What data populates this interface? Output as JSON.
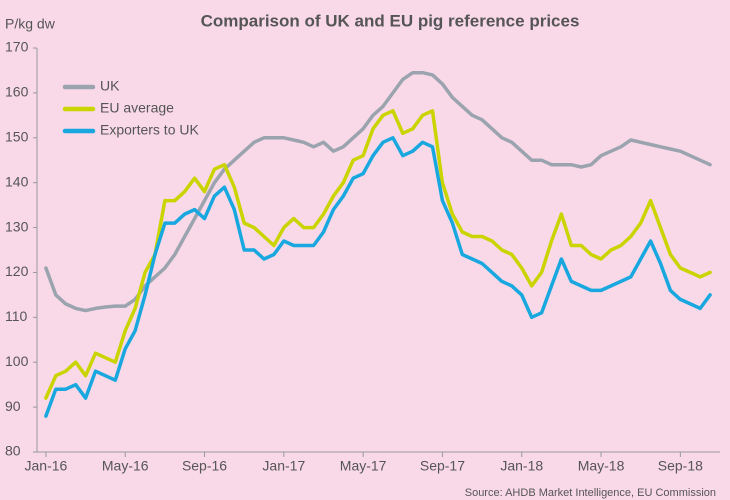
{
  "chart_data": {
    "type": "line",
    "title": "Comparison of UK and EU pig reference prices",
    "y_label": "P/kg dw",
    "source": "Source: AHDB Market Intelligence, EU Commission",
    "x": [
      0,
      0.5,
      1,
      1.5,
      2,
      2.5,
      3,
      3.5,
      4,
      4.5,
      5,
      5.5,
      6,
      6.5,
      7,
      7.5,
      8,
      8.5,
      9,
      9.5,
      10,
      10.5,
      11,
      11.5,
      12,
      12.5,
      13,
      13.5,
      14,
      14.5,
      15,
      15.5,
      16,
      16.5,
      17,
      17.5,
      18,
      18.5,
      19,
      19.5,
      20,
      20.5,
      21,
      21.5,
      22,
      22.5,
      23,
      23.5,
      24,
      24.5,
      25,
      25.5,
      26,
      26.5,
      27,
      27.5,
      28,
      28.5,
      29,
      29.5,
      30,
      30.5,
      31,
      31.5,
      32,
      32.5,
      33,
      33.5
    ],
    "xlim": [
      -0.45,
      34
    ],
    "xticks": [
      {
        "value": 0,
        "label": "Jan-16"
      },
      {
        "value": 4,
        "label": "May-16"
      },
      {
        "value": 8,
        "label": "Sep-16"
      },
      {
        "value": 12,
        "label": "Jan-17"
      },
      {
        "value": 16,
        "label": "May-17"
      },
      {
        "value": 20,
        "label": "Sep-17"
      },
      {
        "value": 24,
        "label": "Jan-18"
      },
      {
        "value": 28,
        "label": "May-18"
      },
      {
        "value": 32,
        "label": "Sep-18"
      }
    ],
    "ylim": [
      80,
      170
    ],
    "yticks": [
      80,
      90,
      100,
      110,
      120,
      130,
      140,
      150,
      160,
      170
    ],
    "grid": false,
    "legend": "upper left",
    "series": [
      {
        "name": "UK",
        "color": "#9ba4ae",
        "values": [
          121,
          115,
          113,
          112,
          111.5,
          112,
          112.3,
          112.5,
          112.5,
          114,
          117,
          119,
          121,
          124,
          128,
          132,
          136,
          140,
          143,
          145,
          147,
          149,
          150,
          150,
          150,
          149.5,
          149,
          148,
          149,
          147,
          148,
          150,
          152,
          155,
          157,
          160,
          163,
          164.5,
          164.5,
          164,
          162,
          159,
          157,
          155,
          154,
          152,
          150,
          149,
          147,
          145,
          145,
          144,
          144,
          144,
          143.5,
          144,
          146,
          147,
          148,
          149.5,
          149,
          148.5,
          148,
          147.5,
          147,
          146,
          145,
          144
        ]
      },
      {
        "name": "EU average",
        "color": "#c9d400",
        "values": [
          92,
          97,
          98,
          100,
          97,
          102,
          101,
          100,
          107,
          112,
          120,
          124,
          136,
          136,
          138,
          141,
          138,
          143,
          144,
          139,
          131,
          130,
          128,
          126,
          130,
          132,
          130,
          130,
          133,
          137,
          140,
          145,
          146,
          152,
          155,
          156,
          151,
          152,
          155,
          156,
          140,
          133,
          129,
          128,
          128,
          127,
          125,
          124,
          121,
          117,
          120,
          127,
          133,
          126,
          126,
          124,
          123,
          125,
          126,
          128,
          131,
          136,
          130,
          124,
          121,
          120,
          119,
          120
        ]
      },
      {
        "name": "Exporters to UK",
        "color": "#18a8df",
        "values": [
          88,
          94,
          94,
          95,
          92,
          98,
          97,
          96,
          103,
          107,
          115,
          124,
          131,
          131,
          133,
          134,
          132,
          137,
          139,
          134,
          125,
          125,
          123,
          124,
          127,
          126,
          126,
          126,
          129,
          134,
          137,
          141,
          142,
          146,
          149,
          150,
          146,
          147,
          149,
          148,
          136,
          131,
          124,
          123,
          122,
          120,
          118,
          117,
          115,
          110,
          111,
          117,
          123,
          118,
          117,
          116,
          116,
          117,
          118,
          119,
          123,
          127,
          122,
          116,
          114,
          113,
          112,
          115
        ]
      }
    ]
  }
}
